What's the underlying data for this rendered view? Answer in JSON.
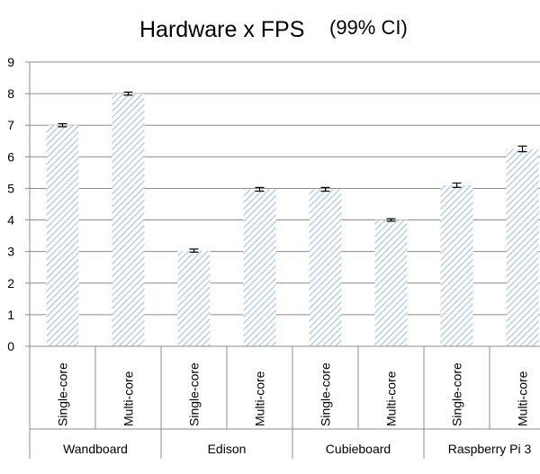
{
  "chart_data": {
    "type": "bar",
    "title": "Hardware x FPS",
    "subtitle": "(99% CI)",
    "xlabel": "",
    "ylabel": "",
    "ylim": [
      0,
      9
    ],
    "yticks": [
      "0",
      "1",
      "2",
      "3",
      "4",
      "5",
      "6",
      "7",
      "8",
      "9"
    ],
    "grid": true,
    "groups": [
      {
        "name": "Wandboard",
        "categories": [
          "Single-core",
          "Multi-core"
        ],
        "values": [
          7.0,
          8.0
        ],
        "ci": [
          0.02,
          0.02
        ]
      },
      {
        "name": "Edison",
        "categories": [
          "Single-core",
          "Multi-core"
        ],
        "values": [
          3.03,
          4.97
        ],
        "ci": [
          0.02,
          0.03
        ]
      },
      {
        "name": "Cubieboard",
        "categories": [
          "Single-core",
          "Multi-core"
        ],
        "values": [
          4.97,
          4.0
        ],
        "ci": [
          0.03,
          0.01
        ]
      },
      {
        "name": "Raspberry Pi 3",
        "categories": [
          "Single-core",
          "Multi-core"
        ],
        "values": [
          5.1,
          6.25
        ],
        "ci": [
          0.04,
          0.06
        ]
      }
    ],
    "bar_fill": "#a9c5e4"
  }
}
